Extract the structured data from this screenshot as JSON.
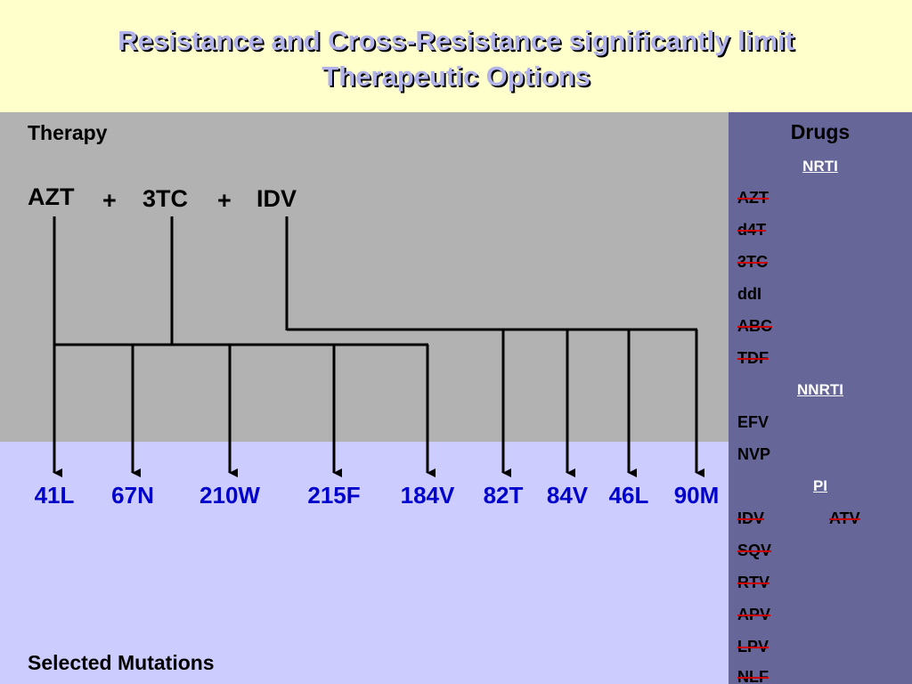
{
  "title": {
    "line1": "Resistance and Cross-Resistance significantly limit",
    "line2": "Therapeutic Options"
  },
  "therapy": {
    "label": "Therapy",
    "drugs": [
      "AZT",
      "3TC",
      "IDV"
    ],
    "plus": "+"
  },
  "mutations": {
    "label": "Selected Mutations",
    "items": [
      "41L",
      "67N",
      "210W",
      "215F",
      "184V",
      "82T",
      "84V",
      "46L",
      "90M"
    ]
  },
  "drugs_panel": {
    "heading": "Drugs",
    "nrti_header": "NRTI",
    "nrti": [
      {
        "name": "AZT",
        "struck": true
      },
      {
        "name": "d4T",
        "struck": true
      },
      {
        "name": "3TC",
        "struck": true
      },
      {
        "name": "ddI",
        "struck": false
      },
      {
        "name": "ABC",
        "struck": true
      },
      {
        "name": "TDF",
        "struck": true
      }
    ],
    "nnrti_header": "NNRTI",
    "nnrti": [
      {
        "name": "EFV",
        "struck": false
      },
      {
        "name": "NVP",
        "struck": false
      }
    ],
    "pi_header": "PI",
    "pi": [
      {
        "name": "IDV",
        "struck": true
      },
      {
        "name": "SQV",
        "struck": true
      },
      {
        "name": "RTV",
        "struck": true
      },
      {
        "name": "APV",
        "struck": true
      },
      {
        "name": "LPV",
        "struck": true
      },
      {
        "name": "NLF",
        "struck": true
      }
    ],
    "pi_extra": {
      "name": "ATV",
      "struck": true
    }
  },
  "colors": {
    "title_fill": "#b3b3ec",
    "title_background": "#ffffcc",
    "therapy_background": "#b2b2b2",
    "mutation_background": "#ccccff",
    "drugs_background": "#666699",
    "mutation_text": "#0000cc",
    "strike": "#cc0000",
    "header_text": "#ffffff"
  }
}
